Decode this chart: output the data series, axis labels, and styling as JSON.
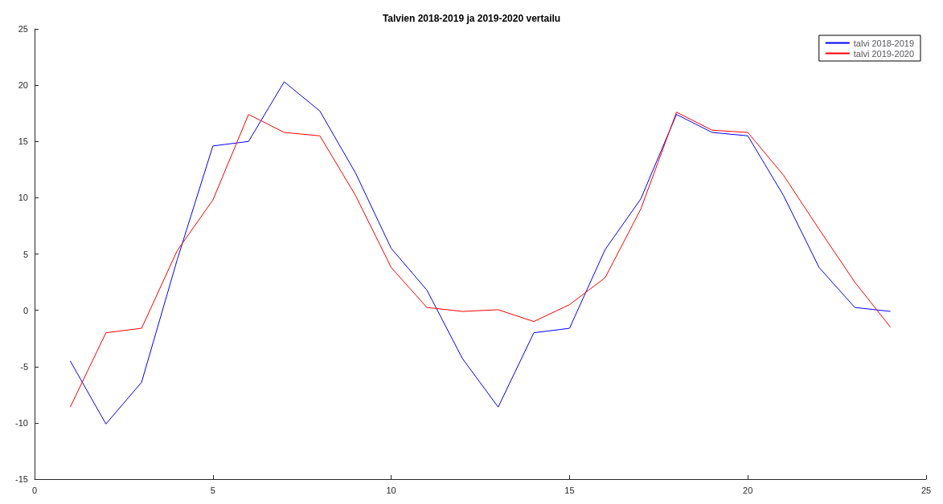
{
  "chart_data": {
    "type": "line",
    "title": "Talvien 2018-2019 ja 2019-2020 vertailu",
    "x": [
      1,
      2,
      3,
      4,
      5,
      6,
      7,
      8,
      9,
      10,
      11,
      12,
      13,
      14,
      15,
      16,
      17,
      18,
      19,
      20,
      21,
      22,
      23,
      24
    ],
    "series": [
      {
        "name": "talvi 2018-2019",
        "color": "#0000ff",
        "values": [
          -4.5,
          -10.1,
          -6.4,
          4.5,
          14.6,
          15.0,
          20.3,
          17.7,
          12.2,
          5.5,
          1.8,
          -4.3,
          -8.6,
          -2.0,
          -1.6,
          5.4,
          9.9,
          17.4,
          15.8,
          15.5,
          10.2,
          3.8,
          0.25,
          -0.1
        ]
      },
      {
        "name": "talvi 2019-2020",
        "color": "#ff0000",
        "values": [
          -8.6,
          -2.0,
          -1.6,
          5.3,
          9.8,
          17.4,
          15.8,
          15.5,
          10.2,
          3.8,
          0.25,
          -0.1,
          0.05,
          -1.0,
          0.5,
          2.9,
          9.0,
          17.6,
          16.0,
          15.8,
          12.0,
          7.2,
          2.5,
          -1.5
        ]
      }
    ],
    "xlim": [
      0,
      25
    ],
    "xticks": [
      0,
      5,
      10,
      15,
      20,
      25
    ],
    "ylim": [
      -15,
      25
    ],
    "yticks": [
      -15,
      -10,
      -5,
      0,
      5,
      10,
      15,
      20,
      25
    ],
    "grid": false,
    "legend": "top right",
    "marker": "none",
    "line_style": "solid"
  }
}
